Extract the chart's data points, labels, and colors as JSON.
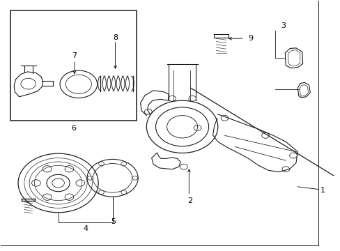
{
  "background_color": "#ffffff",
  "line_color": "#1a1a1a",
  "text_color": "#000000",
  "line_width": 0.8,
  "fig_width": 4.89,
  "fig_height": 3.6,
  "dpi": 100
}
